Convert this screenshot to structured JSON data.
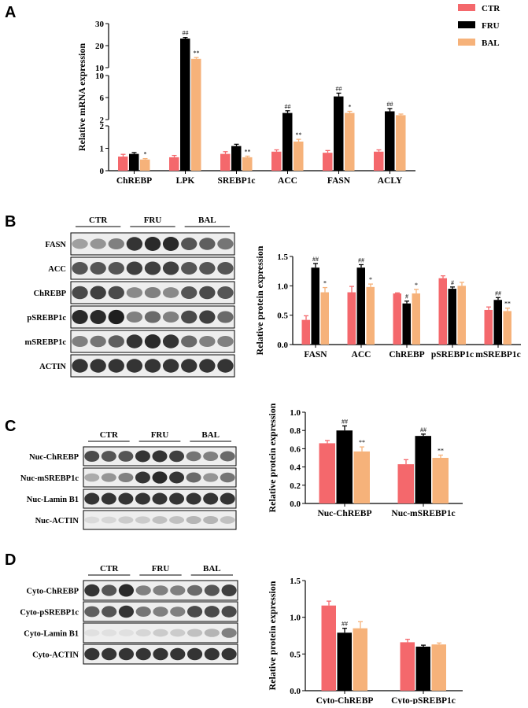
{
  "figure": {
    "panels": {
      "a": "A",
      "b": "B",
      "c": "C",
      "d": "D"
    }
  },
  "legend": [
    {
      "label": "CTR",
      "color": "#f4686c"
    },
    {
      "label": "FRU",
      "color": "#000000"
    },
    {
      "label": "BAL",
      "color": "#f6b27a"
    }
  ],
  "chart_data": [
    {
      "id": "A",
      "type": "bar",
      "ylabel": "Relative mRNA expression",
      "categories": [
        "ChREBP",
        "LPK",
        "SREBP1c",
        "ACC",
        "FASN",
        "ACLY"
      ],
      "ylim": [
        0,
        30
      ],
      "y_ticks": [
        "0",
        "1",
        "2",
        "2",
        "6",
        "10",
        "10",
        "20",
        "30"
      ],
      "series": [
        {
          "name": "CTR",
          "values": [
            0.63,
            0.6,
            0.75,
            0.85,
            0.8,
            0.85
          ],
          "errors": [
            0.1,
            0.08,
            0.1,
            0.08,
            0.1,
            0.08
          ]
        },
        {
          "name": "FRU",
          "values": [
            0.75,
            23.2,
            1.1,
            3.2,
            6.2,
            3.5
          ],
          "errors": [
            0.06,
            0.5,
            0.08,
            0.4,
            0.6,
            0.5
          ]
        },
        {
          "name": "BAL",
          "values": [
            0.5,
            14.0,
            0.6,
            1.3,
            3.2,
            2.8
          ],
          "errors": [
            0.04,
            0.6,
            0.05,
            0.1,
            0.3,
            0.2
          ]
        }
      ],
      "annotations": {
        "FRU": [
          "",
          "##",
          "",
          "##",
          "##",
          "##"
        ],
        "BAL": [
          "*",
          "**",
          "**",
          "**",
          "*",
          ""
        ]
      }
    },
    {
      "id": "B",
      "type": "bar",
      "ylabel": "Relative protein expression",
      "categories": [
        "FASN",
        "ACC",
        "ChREBP",
        "pSREBP1c",
        "mSREBP1c"
      ],
      "ylim": [
        0,
        1.5
      ],
      "y_ticks": [
        "0.0",
        "0.5",
        "1.0",
        "1.5"
      ],
      "series": [
        {
          "name": "CTR",
          "values": [
            0.42,
            0.89,
            0.87,
            1.13,
            0.59
          ],
          "errors": [
            0.07,
            0.1,
            0.01,
            0.04,
            0.05
          ]
        },
        {
          "name": "FRU",
          "values": [
            1.31,
            1.31,
            0.7,
            0.95,
            0.76
          ],
          "errors": [
            0.07,
            0.05,
            0.04,
            0.03,
            0.04
          ]
        },
        {
          "name": "BAL",
          "values": [
            0.89,
            0.98,
            0.87,
            1.0,
            0.57
          ],
          "errors": [
            0.08,
            0.05,
            0.07,
            0.06,
            0.05
          ]
        }
      ],
      "annotations": {
        "FRU": [
          "##",
          "##",
          "#",
          "#",
          "##"
        ],
        "BAL": [
          "*",
          "*",
          "*",
          "",
          "**"
        ]
      }
    },
    {
      "id": "C",
      "type": "bar",
      "ylabel": "Relative protein expression",
      "categories": [
        "Nuc-ChREBP",
        "Nuc-mSREBP1c"
      ],
      "ylim": [
        0,
        1.0
      ],
      "y_ticks": [
        "0.0",
        "0.2",
        "0.4",
        "0.6",
        "0.8",
        "1.0"
      ],
      "series": [
        {
          "name": "CTR",
          "values": [
            0.66,
            0.43
          ],
          "errors": [
            0.03,
            0.05
          ]
        },
        {
          "name": "FRU",
          "values": [
            0.8,
            0.74
          ],
          "errors": [
            0.05,
            0.02
          ]
        },
        {
          "name": "BAL",
          "values": [
            0.57,
            0.5
          ],
          "errors": [
            0.05,
            0.03
          ]
        }
      ],
      "annotations": {
        "FRU": [
          "##",
          "##"
        ],
        "BAL": [
          "**",
          "**"
        ]
      }
    },
    {
      "id": "D",
      "type": "bar",
      "ylabel": "Relative protein expression",
      "categories": [
        "Cyto-ChREBP",
        "Cyto-pSREBP1c"
      ],
      "ylim": [
        0,
        1.5
      ],
      "y_ticks": [
        "0.0",
        "0.5",
        "1.0",
        "1.5"
      ],
      "series": [
        {
          "name": "CTR",
          "values": [
            1.16,
            0.66
          ],
          "errors": [
            0.06,
            0.04
          ]
        },
        {
          "name": "FRU",
          "values": [
            0.79,
            0.6
          ],
          "errors": [
            0.06,
            0.02
          ]
        },
        {
          "name": "BAL",
          "values": [
            0.85,
            0.63
          ],
          "errors": [
            0.09,
            0.02
          ]
        }
      ],
      "annotations": {
        "FRU": [
          "##",
          ""
        ],
        "BAL": [
          "",
          ""
        ]
      }
    }
  ],
  "blots": {
    "B": {
      "groups": [
        "CTR",
        "FRU",
        "BAL"
      ],
      "rows": [
        {
          "label": "FASN",
          "lanes": [
            0.35,
            0.4,
            0.5,
            0.85,
            0.9,
            0.9,
            0.7,
            0.65,
            0.55
          ]
        },
        {
          "label": "ACC",
          "lanes": [
            0.7,
            0.7,
            0.7,
            0.8,
            0.8,
            0.8,
            0.7,
            0.7,
            0.7
          ]
        },
        {
          "label": "ChREBP",
          "lanes": [
            0.75,
            0.8,
            0.75,
            0.45,
            0.5,
            0.45,
            0.7,
            0.75,
            0.7
          ]
        },
        {
          "label": "pSREBP1c",
          "lanes": [
            0.9,
            0.9,
            0.95,
            0.5,
            0.6,
            0.5,
            0.75,
            0.8,
            0.6
          ]
        },
        {
          "label": "mSREBP1c",
          "lanes": [
            0.5,
            0.55,
            0.65,
            0.85,
            0.9,
            0.85,
            0.6,
            0.5,
            0.5
          ]
        },
        {
          "label": "ACTIN",
          "lanes": [
            0.85,
            0.85,
            0.85,
            0.85,
            0.85,
            0.85,
            0.85,
            0.85,
            0.85
          ]
        }
      ]
    },
    "C": {
      "groups": [
        "CTR",
        "FRU",
        "BAL"
      ],
      "rows": [
        {
          "label": "Nuc-ChREBP",
          "lanes": [
            0.75,
            0.7,
            0.7,
            0.85,
            0.85,
            0.8,
            0.55,
            0.5,
            0.6
          ]
        },
        {
          "label": "Nuc-mSREBP1c",
          "lanes": [
            0.3,
            0.4,
            0.5,
            0.85,
            0.9,
            0.85,
            0.6,
            0.4,
            0.55
          ]
        },
        {
          "label": "Nuc-Lamin B1",
          "lanes": [
            0.85,
            0.85,
            0.85,
            0.85,
            0.85,
            0.85,
            0.85,
            0.85,
            0.85
          ]
        },
        {
          "label": "Nuc-ACTIN",
          "lanes": [
            0.08,
            0.1,
            0.15,
            0.15,
            0.2,
            0.2,
            0.25,
            0.25,
            0.2
          ]
        }
      ]
    },
    "D": {
      "groups": [
        "CTR",
        "FRU",
        "BAL"
      ],
      "rows": [
        {
          "label": "Cyto-ChREBP",
          "lanes": [
            0.85,
            0.7,
            0.9,
            0.5,
            0.5,
            0.5,
            0.6,
            0.7,
            0.8
          ]
        },
        {
          "label": "Cyto-pSREBP1c",
          "lanes": [
            0.65,
            0.7,
            0.85,
            0.55,
            0.5,
            0.5,
            0.75,
            0.75,
            0.75
          ]
        },
        {
          "label": "Cyto-Lamin B1",
          "lanes": [
            0.05,
            0.05,
            0.05,
            0.1,
            0.15,
            0.15,
            0.2,
            0.25,
            0.5
          ]
        },
        {
          "label": "Cyto-ACTIN",
          "lanes": [
            0.85,
            0.85,
            0.85,
            0.85,
            0.85,
            0.85,
            0.85,
            0.85,
            0.85
          ]
        }
      ]
    }
  }
}
